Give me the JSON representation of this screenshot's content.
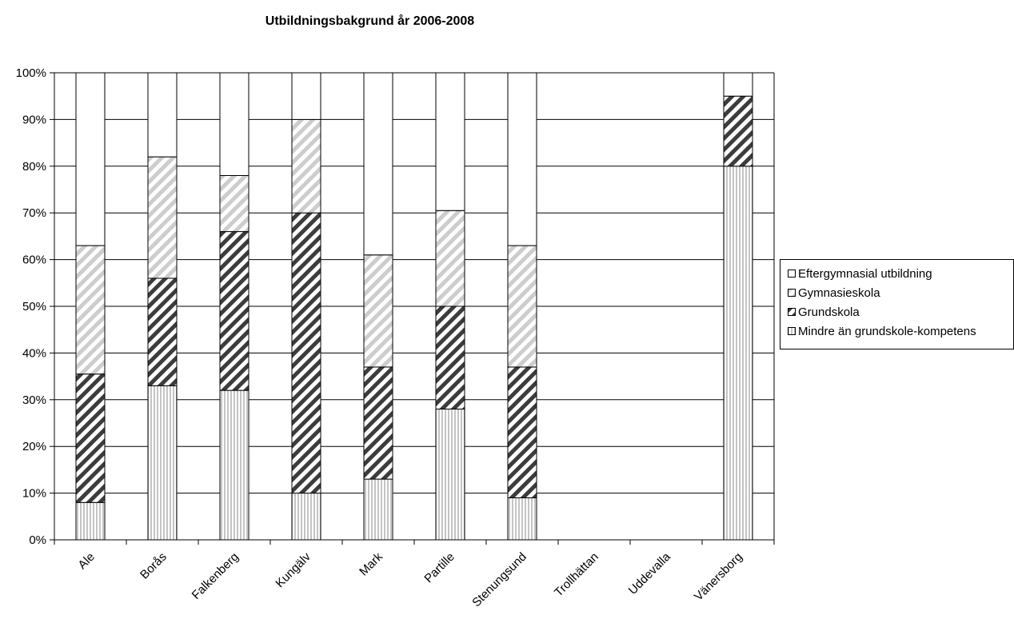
{
  "chart_data": {
    "type": "bar",
    "stacked": true,
    "title": "Utbildningsbakgrund år 2006-2008",
    "xlabel": "",
    "ylabel": "",
    "ylim": [
      0,
      100
    ],
    "y_tick_format": "percent",
    "y_ticks": [
      "0%",
      "10%",
      "20%",
      "30%",
      "40%",
      "50%",
      "60%",
      "70%",
      "80%",
      "90%",
      "100%"
    ],
    "grid": true,
    "legend_position": "right",
    "categories": [
      "Ale",
      "Borås",
      "Falkenberg",
      "Kungälv",
      "Mark",
      "Partille",
      "Stenungsund",
      "Trollhättan",
      "Uddevalla",
      "Vänersborg"
    ],
    "series": [
      {
        "name": "Mindre än grundskole-kompetens",
        "pattern": "vertical-stripes",
        "color": "#c8c8c8",
        "values": [
          8,
          33,
          32,
          10,
          13,
          28,
          9,
          null,
          null,
          80
        ]
      },
      {
        "name": "Grundskola",
        "pattern": "dark-diagonal",
        "color": "#404040",
        "values": [
          27.5,
          23,
          34,
          60,
          24,
          22,
          28,
          null,
          null,
          15
        ]
      },
      {
        "name": "Gymnasieskola",
        "pattern": "light-diagonal",
        "color": "#c8c8c8",
        "values": [
          27.5,
          26,
          12,
          20,
          24,
          20.5,
          26,
          null,
          null,
          0
        ]
      },
      {
        "name": "Eftergymnasial utbildning",
        "pattern": "white",
        "color": "#ffffff",
        "values": [
          37,
          18,
          22,
          10,
          39,
          29.5,
          37,
          null,
          null,
          5
        ]
      }
    ]
  }
}
